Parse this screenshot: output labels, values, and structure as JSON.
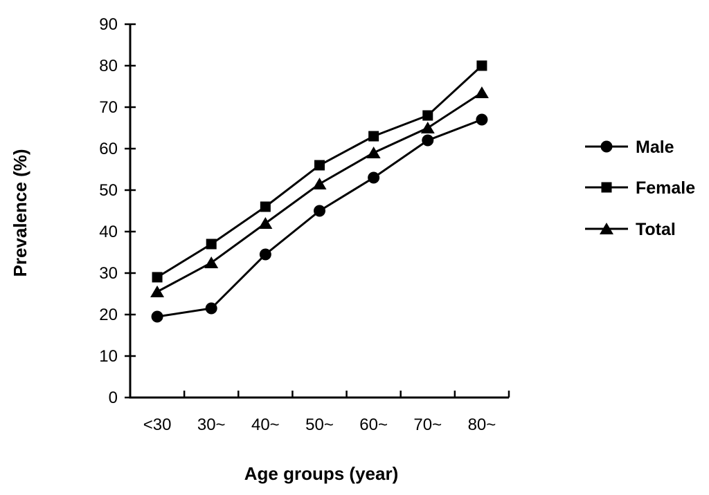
{
  "chart_data": {
    "type": "line",
    "title": "",
    "xlabel": "Age groups (year)",
    "ylabel": "Prevalence (%)",
    "categories": [
      "<30",
      "30~",
      "40~",
      "50~",
      "60~",
      "70~",
      "80~"
    ],
    "series": [
      {
        "name": "Male",
        "marker": "circle",
        "color": "#000000",
        "values": [
          19.5,
          21.5,
          34.5,
          45.0,
          53.0,
          62.0,
          67.0
        ]
      },
      {
        "name": "Female",
        "marker": "square",
        "color": "#000000",
        "values": [
          29.0,
          37.0,
          46.0,
          56.0,
          63.0,
          68.0,
          80.0
        ]
      },
      {
        "name": "Total",
        "marker": "triangle",
        "color": "#000000",
        "values": [
          25.5,
          32.5,
          42.0,
          51.5,
          59.0,
          65.0,
          73.5
        ]
      }
    ],
    "y_axis": {
      "min": 0,
      "max": 90,
      "step": 10,
      "tick_labels": [
        "0",
        "10",
        "20",
        "30",
        "40",
        "50",
        "60",
        "70",
        "80",
        "90"
      ]
    },
    "legend": {
      "position": "right",
      "entries": [
        "Male",
        "Female",
        "Total"
      ]
    },
    "grid": false,
    "colors": {
      "line": "#000000",
      "text": "#000000",
      "background": "#ffffff"
    }
  }
}
